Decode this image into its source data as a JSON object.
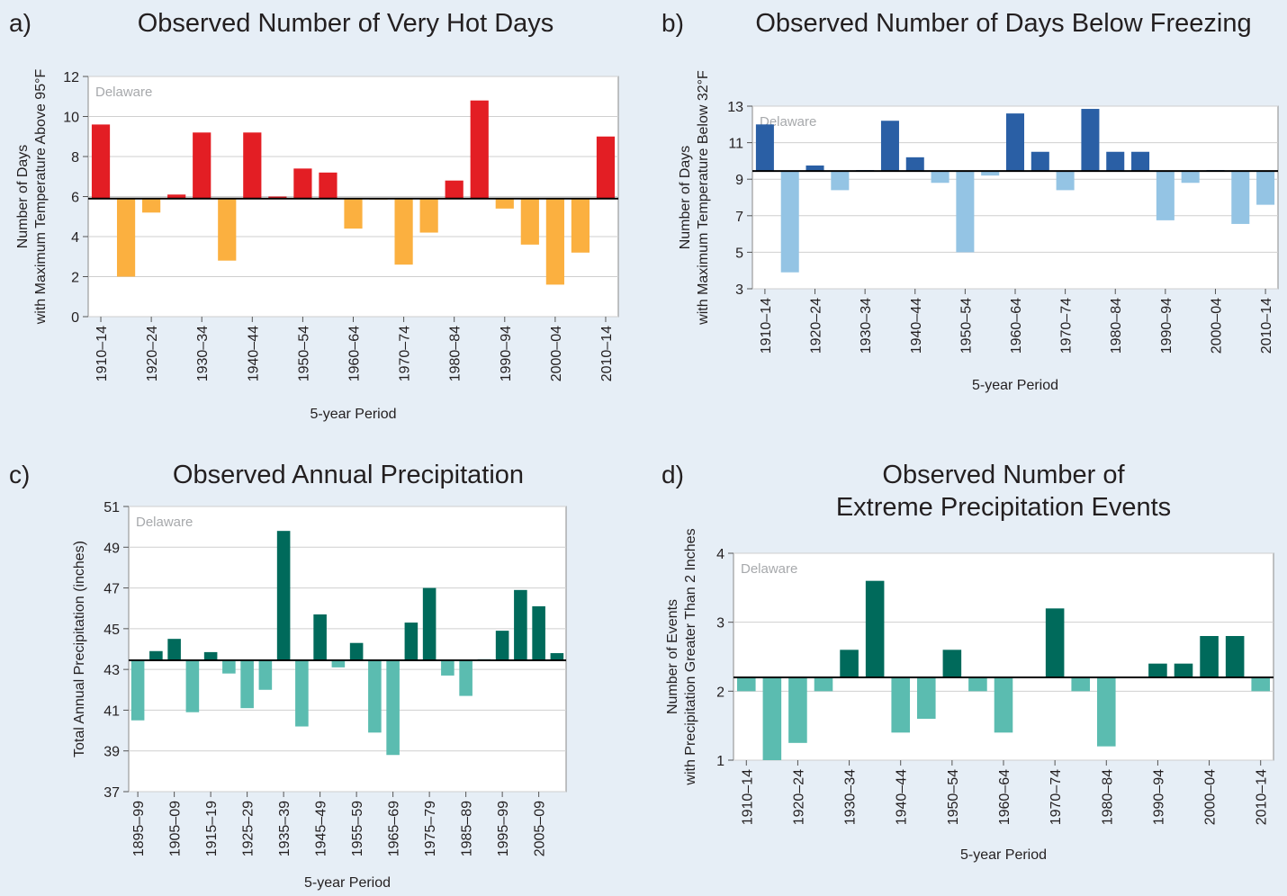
{
  "chart_data": [
    {
      "type": "bar",
      "panel": "a)",
      "title": [
        "Observed Number of Very Hot Days"
      ],
      "annotation": "Delaware",
      "ylabel": [
        "Number of Days",
        "with Maximum Temperature Above 95°F"
      ],
      "xlabel": "5-year Period",
      "categories": [
        "1910–14",
        null,
        "1920–24",
        null,
        "1930–34",
        null,
        "1940–44",
        null,
        "1950–54",
        null,
        "1960–64",
        null,
        "1970–74",
        null,
        "1980–84",
        null,
        "1990–94",
        null,
        "2000–04",
        null,
        "2010–14"
      ],
      "values": [
        9.6,
        2.0,
        5.2,
        6.1,
        9.2,
        2.8,
        9.2,
        6.0,
        7.4,
        7.2,
        4.4,
        5.85,
        2.6,
        4.2,
        6.8,
        10.8,
        5.4,
        3.6,
        1.6,
        3.2,
        9.0
      ],
      "baseline": 5.9,
      "color_above": "#e31e24",
      "color_below": "#fbb040",
      "ylim": [
        0,
        12
      ],
      "yticks": [
        0,
        2,
        4,
        6,
        8,
        10,
        12
      ],
      "grid": true
    },
    {
      "type": "bar",
      "panel": "b)",
      "title": [
        "Observed Number of Days Below Freezing"
      ],
      "annotation": "Delaware",
      "ylabel": [
        "Number of Days",
        "with Maximum Temperature Below 32°F"
      ],
      "xlabel": "5-year Period",
      "categories": [
        "1910–14",
        null,
        "1920–24",
        null,
        "1930–34",
        null,
        "1940–44",
        null,
        "1950–54",
        null,
        "1960–64",
        null,
        "1970–74",
        null,
        "1980–84",
        null,
        "1990–94",
        null,
        "2000–04",
        null,
        "2010–14"
      ],
      "values": [
        12.0,
        3.9,
        9.75,
        8.4,
        9.5,
        12.2,
        10.2,
        8.8,
        5.0,
        9.2,
        12.6,
        10.5,
        8.4,
        12.85,
        10.5,
        10.5,
        6.75,
        8.8,
        9.5,
        6.55,
        7.6
      ],
      "baseline": 9.45,
      "color_above": "#2a5fa5",
      "color_below": "#94c4e4",
      "ylim": [
        3,
        13
      ],
      "yticks": [
        3,
        5,
        7,
        9,
        11,
        13
      ],
      "grid": true
    },
    {
      "type": "bar",
      "panel": "c)",
      "title": [
        "Observed Annual Precipitation"
      ],
      "annotation": "Delaware",
      "ylabel": [
        "Total Annual Precipitation (inches)"
      ],
      "xlabel": "5-year Period",
      "categories": [
        "1895–99",
        null,
        "1905–09",
        null,
        "1915–19",
        null,
        "1925–29",
        null,
        "1935–39",
        null,
        "1945–49",
        null,
        "1955–59",
        null,
        "1965–69",
        null,
        "1975–79",
        null,
        "1985–89",
        null,
        "1995–99",
        null,
        "2005–09",
        null
      ],
      "values": [
        40.5,
        43.9,
        44.5,
        40.9,
        43.85,
        42.8,
        41.1,
        42.0,
        49.8,
        40.2,
        45.7,
        43.1,
        44.3,
        39.9,
        38.8,
        45.3,
        47.0,
        42.7,
        41.7,
        43.5,
        44.9,
        46.9,
        46.1,
        43.8
      ],
      "baseline": 43.45,
      "color_above": "#006a5b",
      "color_below": "#5bbcb0",
      "ylim": [
        37,
        51
      ],
      "yticks": [
        37,
        39,
        41,
        43,
        45,
        47,
        49,
        51
      ],
      "grid": true
    },
    {
      "type": "bar",
      "panel": "d)",
      "title": [
        "Observed Number of",
        "Extreme Precipitation Events"
      ],
      "annotation": "Delaware",
      "ylabel": [
        "Number of Events",
        "with Precipitation Greater Than 2 Inches"
      ],
      "xlabel": "5-year Period",
      "categories": [
        "1910–14",
        null,
        "1920–24",
        null,
        "1930–34",
        null,
        "1940–44",
        null,
        "1950–54",
        null,
        "1960–64",
        null,
        "1970–74",
        null,
        "1980–84",
        null,
        "1990–94",
        null,
        "2000–04",
        null,
        "2010–14"
      ],
      "values": [
        2.0,
        1.0,
        1.25,
        2.0,
        2.6,
        3.6,
        1.4,
        1.6,
        2.6,
        2.0,
        1.4,
        2.2,
        3.2,
        2.0,
        1.2,
        2.2,
        2.4,
        2.4,
        2.8,
        2.8,
        2.0
      ],
      "baseline": 2.2,
      "color_above": "#006a5b",
      "color_below": "#5bbcb0",
      "ylim": [
        1,
        4
      ],
      "yticks": [
        1,
        2,
        3,
        4
      ],
      "grid": true
    }
  ]
}
